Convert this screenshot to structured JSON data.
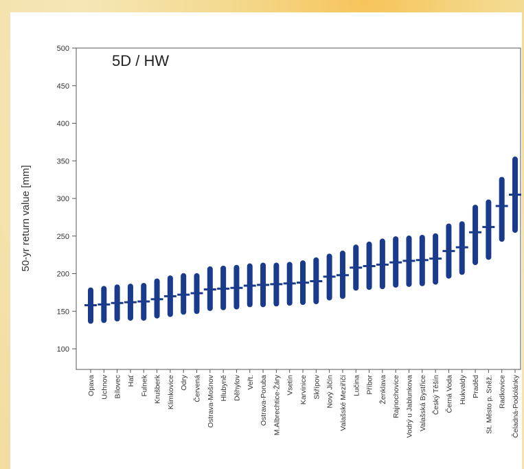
{
  "chart_data": {
    "type": "errorbar",
    "title": "5D / HW",
    "ylabel": "50-yr return value [mm]",
    "xlabel": "",
    "ylim": [
      100,
      500
    ],
    "yticks": [
      "100",
      "150",
      "200",
      "250",
      "300",
      "350",
      "400",
      "450",
      "500"
    ],
    "grid": false,
    "color": "#1a3a8c",
    "categories": [
      "Opava",
      "Uchnov",
      "Bílovec",
      "Hať",
      "Fulnek",
      "Krušberk",
      "Klimkovice",
      "Odry",
      "Červená",
      "Ostrava-Mošnov",
      "Hlubyně",
      "Děhylov",
      "Veřt.",
      "Ostrava-Poruba",
      "M.Albrechtice-Žáry",
      "Vsetín",
      "Karvinice",
      "Skřípov",
      "Nový Jičín",
      "Valašské Meziříčí",
      "Lučina",
      "Příbor",
      "Ženklava",
      "Rajnochovice",
      "Vodrý u Jablunkova",
      "Valašská Bystřice",
      "Český Těšín",
      "Černá Voda",
      "Hukvaldy",
      "Praděd",
      "St. Město p. Sněž.",
      "Radkovice",
      "Čeladná-Podolánky"
    ],
    "center": [
      158,
      159,
      161,
      162,
      163,
      166,
      170,
      172,
      174,
      179,
      180,
      181,
      184,
      185,
      186,
      187,
      188,
      190,
      196,
      198,
      208,
      210,
      212,
      215,
      217,
      218,
      220,
      230,
      235,
      255,
      262,
      290,
      305
    ],
    "lower": [
      137,
      138,
      140,
      141,
      141,
      144,
      146,
      149,
      150,
      154,
      155,
      156,
      159,
      159,
      160,
      161,
      162,
      163,
      168,
      170,
      181,
      182,
      183,
      185,
      186,
      187,
      189,
      197,
      202,
      215,
      222,
      246,
      258
    ],
    "upper": [
      178,
      180,
      182,
      183,
      184,
      190,
      194,
      197,
      197,
      206,
      207,
      208,
      210,
      211,
      211,
      212,
      214,
      218,
      223,
      227,
      235,
      239,
      243,
      246,
      247,
      248,
      250,
      263,
      266,
      288,
      295,
      325,
      352
    ]
  }
}
